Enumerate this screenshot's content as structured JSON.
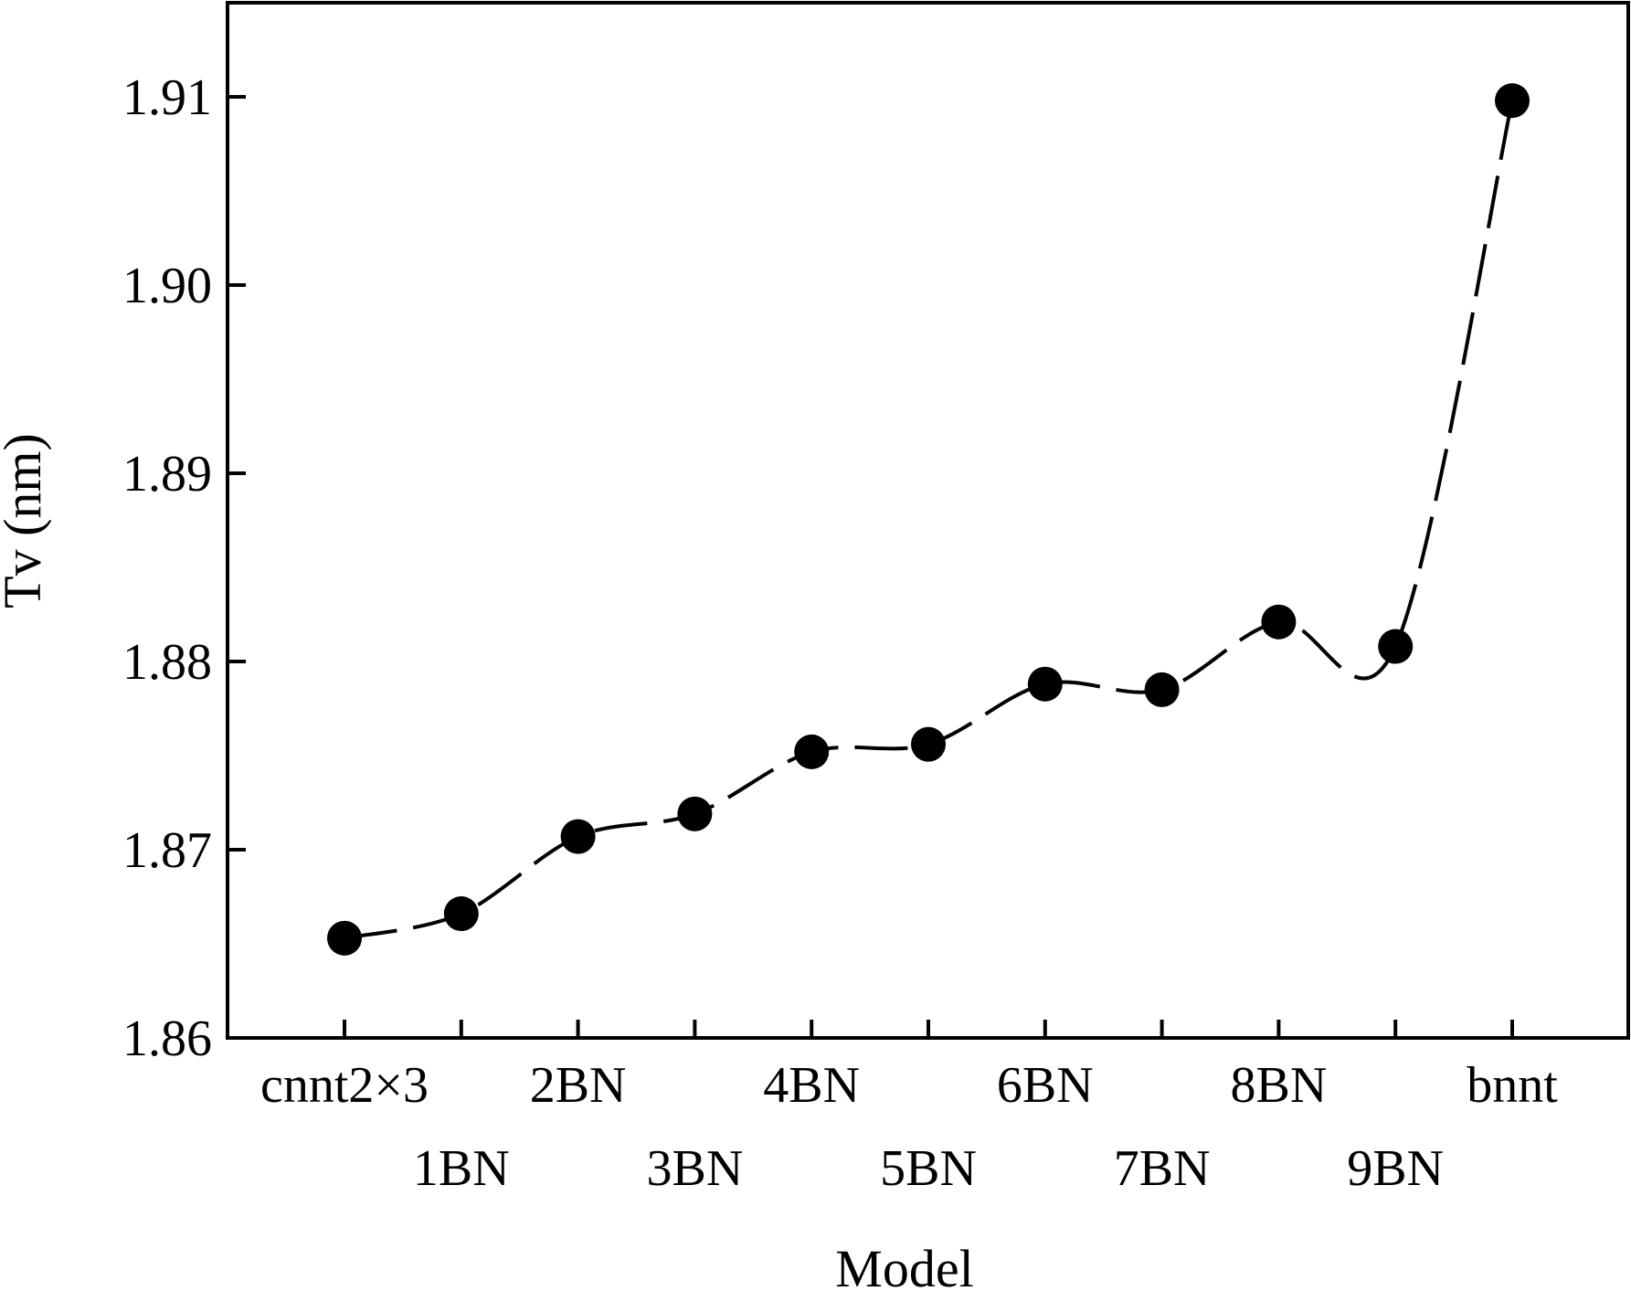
{
  "chart_data": {
    "type": "line",
    "categories": [
      "cnnt2×3",
      "1BN",
      "2BN",
      "3BN",
      "4BN",
      "5BN",
      "6BN",
      "7BN",
      "8BN",
      "9BN",
      "bnnt"
    ],
    "series": [
      {
        "values": [
          1.8653,
          1.8666,
          1.8707,
          1.8719,
          1.8752,
          1.8756,
          1.8788,
          1.8785,
          1.8821,
          1.8808,
          1.9098
        ]
      }
    ],
    "xlabel": "Model",
    "ylabel": "Tv (nm)",
    "ylim": [
      1.86,
      1.915
    ],
    "yticks": [
      "1.86",
      "1.87",
      "1.88",
      "1.89",
      "1.90",
      "1.91"
    ],
    "line_style": "dashed",
    "marker": "filled-circle",
    "grid": false,
    "legend": "none",
    "colors": {
      "line": "#000000",
      "marker": "#000000"
    }
  }
}
